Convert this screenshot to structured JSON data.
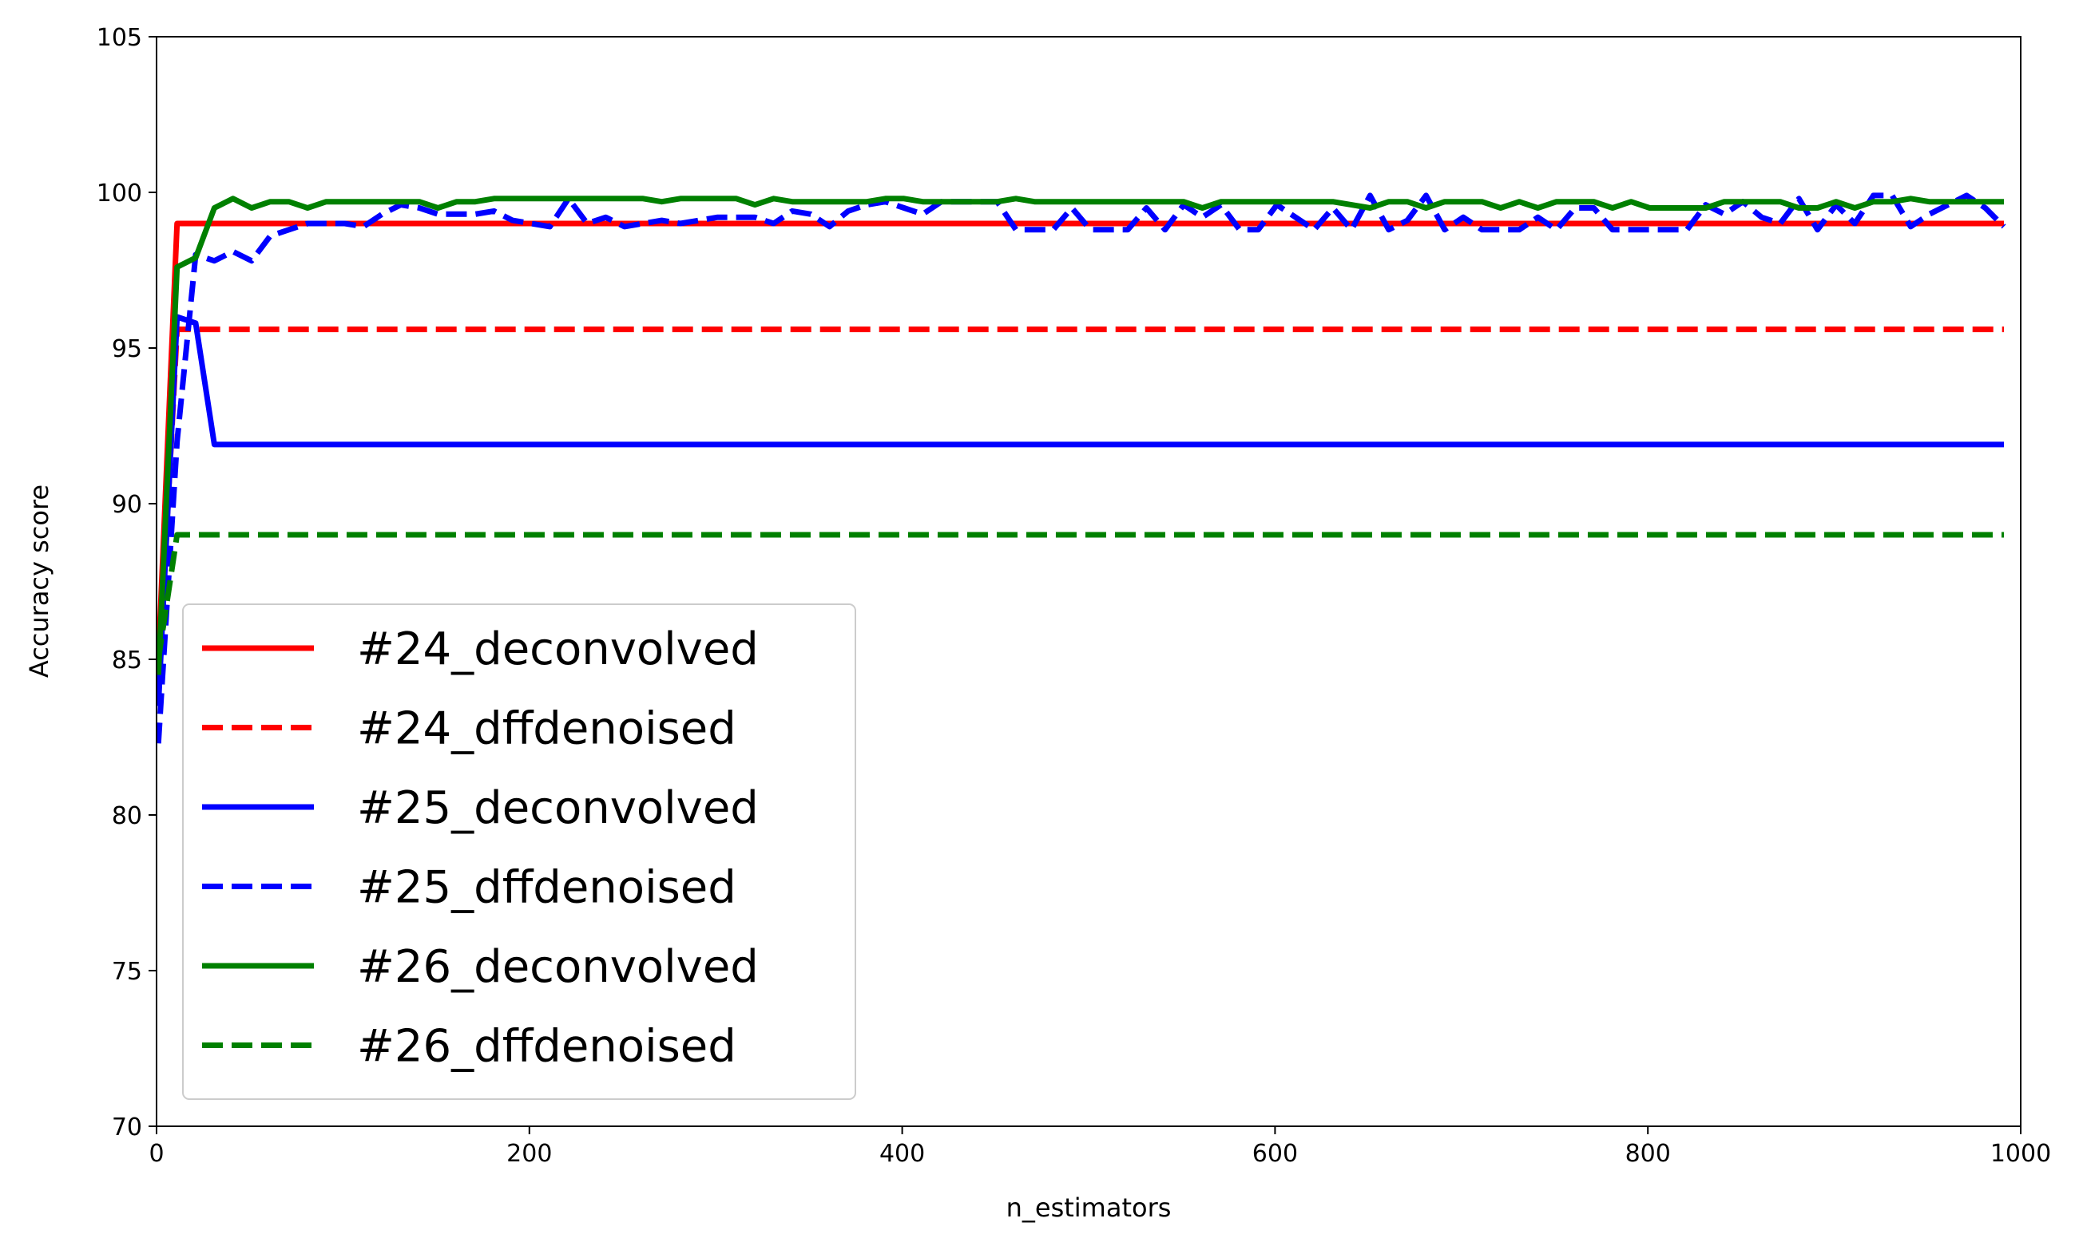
{
  "chart_data": {
    "type": "line",
    "title": "",
    "xlabel": "n_estimators",
    "ylabel": "Accuracy score",
    "xlim": [
      0,
      1000
    ],
    "ylim": [
      70,
      105
    ],
    "xticks": [
      0,
      200,
      400,
      600,
      800,
      1000
    ],
    "yticks": [
      70,
      75,
      80,
      85,
      90,
      95,
      100,
      105
    ],
    "grid": false,
    "legend_position": "lower-left",
    "series": [
      {
        "name": "#24_deconvolved",
        "color": "#ff0000",
        "dash": "solid",
        "x": [
          1,
          11,
          21,
          31,
          41,
          991
        ],
        "y": [
          85.0,
          99.0,
          99.0,
          99.0,
          99.0,
          99.0
        ]
      },
      {
        "name": "#24_dffdenoised",
        "color": "#ff0000",
        "dash": "dashed",
        "x": [
          1,
          11,
          21,
          31,
          41,
          991
        ],
        "y": [
          84.0,
          95.6,
          95.6,
          95.6,
          95.6,
          95.6
        ]
      },
      {
        "name": "#25_deconvolved",
        "color": "#0000ff",
        "dash": "solid",
        "x": [
          1,
          11,
          21,
          31,
          41,
          991
        ],
        "y": [
          83.5,
          96.0,
          95.8,
          91.9,
          91.9,
          91.9
        ]
      },
      {
        "name": "#25_dffdenoised",
        "color": "#0000ff",
        "dash": "dashed",
        "x": [
          1,
          11,
          21,
          31,
          41,
          51,
          61,
          71,
          81,
          91,
          101,
          111,
          121,
          131,
          141,
          151,
          161,
          171,
          181,
          191,
          201,
          211,
          221,
          231,
          241,
          251,
          261,
          271,
          281,
          291,
          301,
          311,
          321,
          331,
          341,
          351,
          361,
          371,
          381,
          391,
          401,
          411,
          421,
          431,
          441,
          451,
          461,
          471,
          481,
          491,
          501,
          511,
          521,
          531,
          541,
          551,
          561,
          571,
          581,
          591,
          601,
          611,
          621,
          631,
          641,
          651,
          661,
          671,
          681,
          691,
          701,
          711,
          721,
          731,
          741,
          751,
          761,
          771,
          781,
          791,
          801,
          811,
          821,
          831,
          841,
          851,
          861,
          871,
          881,
          891,
          901,
          911,
          921,
          931,
          941,
          951,
          961,
          971,
          981,
          991
        ],
        "y": [
          82.3,
          92.0,
          98.0,
          97.8,
          98.1,
          97.8,
          98.6,
          98.8,
          99.0,
          99.0,
          99.0,
          98.9,
          99.3,
          99.6,
          99.5,
          99.3,
          99.3,
          99.3,
          99.4,
          99.1,
          99.0,
          98.9,
          99.8,
          99.0,
          99.2,
          98.9,
          99.0,
          99.1,
          99.0,
          99.1,
          99.2,
          99.2,
          99.2,
          99.0,
          99.4,
          99.3,
          98.9,
          99.4,
          99.6,
          99.7,
          99.5,
          99.3,
          99.7,
          99.7,
          99.7,
          99.7,
          98.8,
          98.8,
          98.8,
          99.5,
          98.8,
          98.8,
          98.8,
          99.5,
          98.8,
          99.6,
          99.2,
          99.6,
          98.8,
          98.8,
          99.6,
          99.2,
          98.8,
          99.5,
          98.8,
          99.9,
          98.8,
          99.1,
          99.9,
          98.8,
          99.2,
          98.8,
          98.8,
          98.8,
          99.2,
          98.8,
          99.5,
          99.5,
          98.8,
          98.8,
          98.8,
          98.8,
          98.8,
          99.6,
          99.3,
          99.7,
          99.2,
          99.0,
          99.8,
          98.8,
          99.6,
          99.0,
          99.9,
          99.9,
          98.9,
          99.3,
          99.6,
          99.9,
          99.5,
          98.9
        ]
      },
      {
        "name": "#26_deconvolved",
        "color": "#008000",
        "dash": "solid",
        "x": [
          1,
          11,
          21,
          31,
          41,
          51,
          61,
          71,
          81,
          91,
          101,
          111,
          121,
          131,
          141,
          151,
          161,
          171,
          181,
          191,
          201,
          211,
          221,
          231,
          241,
          251,
          261,
          271,
          281,
          291,
          301,
          311,
          321,
          331,
          341,
          351,
          361,
          371,
          381,
          391,
          401,
          411,
          421,
          431,
          441,
          451,
          461,
          471,
          481,
          491,
          501,
          511,
          521,
          531,
          541,
          551,
          561,
          571,
          581,
          591,
          601,
          611,
          621,
          631,
          641,
          651,
          661,
          671,
          681,
          691,
          701,
          711,
          721,
          731,
          741,
          751,
          761,
          771,
          781,
          791,
          801,
          811,
          821,
          831,
          841,
          851,
          861,
          871,
          881,
          891,
          901,
          911,
          921,
          931,
          941,
          951,
          961,
          971,
          981,
          991
        ],
        "y": [
          84.5,
          97.6,
          97.9,
          99.5,
          99.8,
          99.5,
          99.7,
          99.7,
          99.5,
          99.7,
          99.7,
          99.7,
          99.7,
          99.7,
          99.7,
          99.5,
          99.7,
          99.7,
          99.8,
          99.8,
          99.8,
          99.8,
          99.8,
          99.8,
          99.8,
          99.8,
          99.8,
          99.7,
          99.8,
          99.8,
          99.8,
          99.8,
          99.6,
          99.8,
          99.7,
          99.7,
          99.7,
          99.7,
          99.7,
          99.8,
          99.8,
          99.7,
          99.7,
          99.7,
          99.7,
          99.7,
          99.8,
          99.7,
          99.7,
          99.7,
          99.7,
          99.7,
          99.7,
          99.7,
          99.7,
          99.7,
          99.5,
          99.7,
          99.7,
          99.7,
          99.7,
          99.7,
          99.7,
          99.7,
          99.6,
          99.5,
          99.7,
          99.7,
          99.5,
          99.7,
          99.7,
          99.7,
          99.5,
          99.7,
          99.5,
          99.7,
          99.7,
          99.7,
          99.5,
          99.7,
          99.5,
          99.5,
          99.5,
          99.5,
          99.7,
          99.7,
          99.7,
          99.7,
          99.5,
          99.5,
          99.7,
          99.5,
          99.7,
          99.7,
          99.8,
          99.7,
          99.7,
          99.7,
          99.7,
          99.7
        ]
      },
      {
        "name": "#26_dffdenoised",
        "color": "#008000",
        "dash": "dashed",
        "x": [
          1,
          11,
          21,
          31,
          41,
          991
        ],
        "y": [
          85.0,
          89.0,
          89.0,
          89.0,
          89.0,
          89.0
        ]
      }
    ]
  }
}
